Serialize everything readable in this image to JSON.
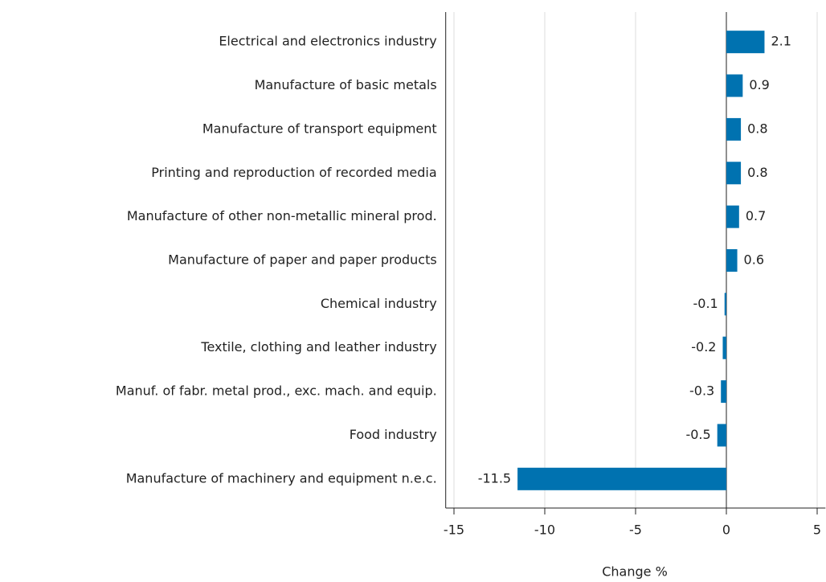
{
  "chart_data": {
    "type": "hbar",
    "categories": [
      "Electrical and electronics industry",
      "Manufacture of basic metals",
      "Manufacture of transport equipment",
      "Printing and reproduction of recorded media",
      "Manufacture of other non-metallic mineral prod.",
      "Manufacture of paper and paper products",
      "Chemical industry",
      "Textile, clothing and leather industry",
      "Manuf. of fabr. metal prod., exc. mach. and equip.",
      "Food industry",
      "Manufacture of machinery and equipment n.e.c."
    ],
    "values": [
      2.1,
      0.9,
      0.8,
      0.8,
      0.7,
      0.6,
      -0.1,
      -0.2,
      -0.3,
      -0.5,
      -11.5
    ],
    "color": "#0072b0",
    "xlabel": "Change %",
    "xlim": [
      -15.5,
      5.5
    ],
    "xticks": [
      -15,
      -10,
      -5,
      0,
      5
    ],
    "grid": true
  }
}
